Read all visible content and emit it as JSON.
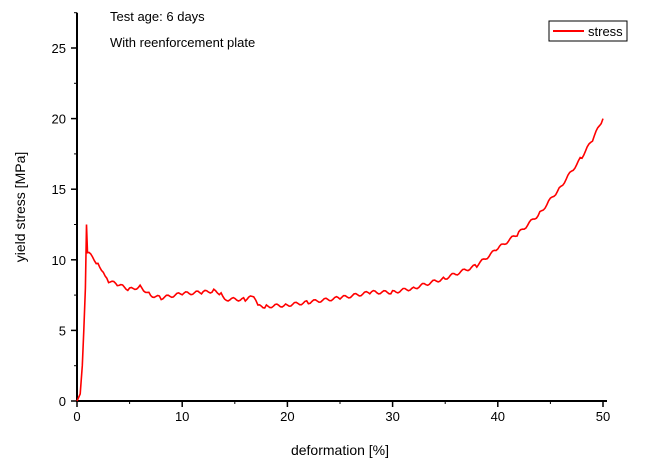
{
  "chart_data": {
    "type": "line",
    "title": "",
    "annotations": [
      "Test age:  6 days",
      "With reenforcement plate"
    ],
    "xlabel": "deformation [%]",
    "ylabel": "yield stress [MPa]",
    "xlim": [
      0,
      50
    ],
    "ylim": [
      0,
      27.5
    ],
    "xticks": [
      0,
      10,
      20,
      30,
      40,
      50
    ],
    "yticks": [
      0,
      5,
      10,
      15,
      20,
      25
    ],
    "grid": false,
    "legend": {
      "placement": "top-right",
      "entries": [
        "stress"
      ]
    },
    "series": [
      {
        "name": "stress",
        "color": "#ff0000",
        "x": [
          0,
          0.3,
          0.5,
          0.65,
          0.8,
          0.9,
          1.0,
          1.3,
          2,
          2.5,
          3,
          4,
          5,
          6,
          7,
          8,
          10,
          12,
          13,
          13.7,
          14.2,
          16,
          16.8,
          17.2,
          18,
          20,
          22,
          25,
          28,
          30,
          32,
          35,
          38,
          40,
          42,
          44,
          46,
          48,
          49,
          50
        ],
        "y": [
          0,
          0.5,
          2.5,
          5,
          8,
          12.5,
          10.5,
          10.3,
          9.7,
          9.2,
          8.5,
          8.2,
          7.9,
          8.1,
          7.5,
          7.3,
          7.6,
          7.7,
          7.8,
          7.6,
          7.2,
          7.2,
          7.4,
          6.7,
          6.7,
          6.8,
          7.0,
          7.3,
          7.7,
          7.7,
          8.0,
          8.7,
          9.6,
          10.8,
          11.9,
          13.3,
          15.2,
          17.3,
          18.5,
          20
        ]
      }
    ]
  }
}
